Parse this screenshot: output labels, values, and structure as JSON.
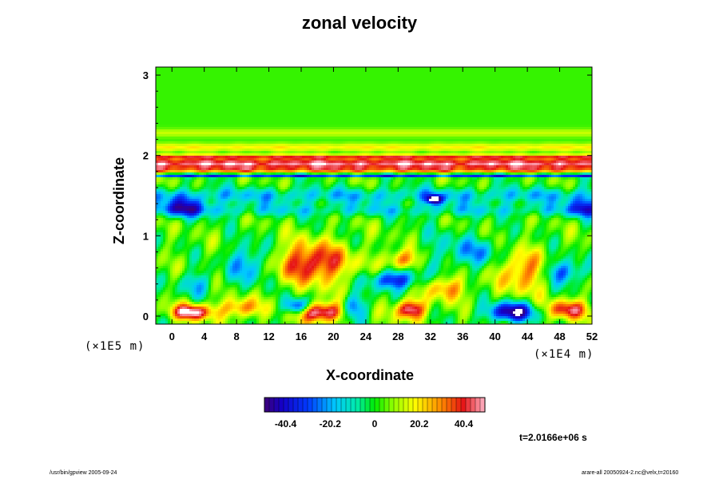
{
  "chart_data": {
    "type": "heatmap",
    "title": "zonal velocity",
    "xlabel": "X-coordinate",
    "ylabel": "Z-coordinate",
    "x_unit": "(×1E4 m)",
    "y_unit": "(×1E5 m)",
    "xlim": [
      -2,
      52
    ],
    "ylim": [
      -0.1,
      3.1
    ],
    "x_ticks": [
      0,
      4,
      8,
      12,
      16,
      20,
      24,
      28,
      32,
      36,
      40,
      44,
      48,
      52
    ],
    "y_ticks": [
      0,
      1,
      2,
      3
    ],
    "colorbar": {
      "range": [
        -50,
        50
      ],
      "tick_values": [
        -40.4,
        -20.2,
        0,
        20.2,
        40.4
      ],
      "tick_labels": [
        "-40.4",
        "-20.2",
        "0",
        "20.2",
        "40.4"
      ]
    },
    "bands": [
      {
        "z": 1.9,
        "width": 0.06,
        "value": 44
      },
      {
        "z": 1.98,
        "width": 0.03,
        "value": 30
      },
      {
        "z": 1.82,
        "width": 0.04,
        "value": 26
      },
      {
        "z": 2.1,
        "width": 0.05,
        "value": 16
      },
      {
        "z": 2.28,
        "width": 0.05,
        "value": 10
      },
      {
        "z": 1.75,
        "width": 0.02,
        "value": -38
      },
      {
        "z": 1.5,
        "width": 0.1,
        "value": -18
      },
      {
        "z": 1.32,
        "width": 0.08,
        "value": -14
      }
    ],
    "features": [
      {
        "x": 17.5,
        "z": 0.66,
        "rx": 4.5,
        "rz": 0.25,
        "value": 42
      },
      {
        "x": 18.5,
        "z": 0.05,
        "rx": 3.0,
        "rz": 0.12,
        "value": 52
      },
      {
        "x": 2.5,
        "z": 0.05,
        "rx": 2.5,
        "rz": 0.1,
        "value": 50
      },
      {
        "x": 8.5,
        "z": 0.1,
        "rx": 2.5,
        "rz": 0.12,
        "value": 30
      },
      {
        "x": 42.0,
        "z": 0.05,
        "rx": 3.0,
        "rz": 0.12,
        "value": -52
      },
      {
        "x": 15.5,
        "z": 0.12,
        "rx": 1.5,
        "rz": 0.1,
        "value": -45
      },
      {
        "x": 22.5,
        "z": 0.1,
        "rx": 1.5,
        "rz": 0.15,
        "value": -35
      },
      {
        "x": 29.5,
        "z": 0.08,
        "rx": 1.8,
        "rz": 0.12,
        "value": 50
      },
      {
        "x": 49.0,
        "z": 0.08,
        "rx": 2.5,
        "rz": 0.12,
        "value": 40
      },
      {
        "x": 27.5,
        "z": 0.45,
        "rx": 3.0,
        "rz": 0.12,
        "value": -40
      },
      {
        "x": 34.0,
        "z": 0.35,
        "rx": 2.5,
        "rz": 0.15,
        "value": 28
      },
      {
        "x": 43.5,
        "z": 0.55,
        "rx": 3.0,
        "rz": 0.25,
        "value": 30
      },
      {
        "x": 48.5,
        "z": 0.55,
        "rx": 2.5,
        "rz": 0.15,
        "value": -32
      },
      {
        "x": 9.5,
        "z": 0.65,
        "rx": 2.5,
        "rz": 0.25,
        "value": -26
      },
      {
        "x": 3.0,
        "z": 0.4,
        "rx": 2.0,
        "rz": 0.15,
        "value": -20
      },
      {
        "x": 28.5,
        "z": 0.7,
        "rx": 2.0,
        "rz": 0.12,
        "value": 32
      },
      {
        "x": 1.5,
        "z": 1.35,
        "rx": 3.0,
        "rz": 0.12,
        "value": -32
      },
      {
        "x": 32.5,
        "z": 1.45,
        "rx": 1.0,
        "rz": 0.06,
        "value": -52
      },
      {
        "x": 34.0,
        "z": 0.8,
        "rx": 4.0,
        "rz": 0.3,
        "value": -10
      },
      {
        "x": 38.0,
        "z": 0.8,
        "rx": 3.0,
        "rz": 0.18,
        "value": -18
      },
      {
        "x": 51.0,
        "z": 1.35,
        "rx": 2.0,
        "rz": 0.12,
        "value": -28
      }
    ],
    "time_label": "t=2.0166e+06 s",
    "footer_left": "/usr/bin/gpview 2005-09-24",
    "footer_right": "arare-all 20050924-2.nc@velx,t=20160"
  }
}
